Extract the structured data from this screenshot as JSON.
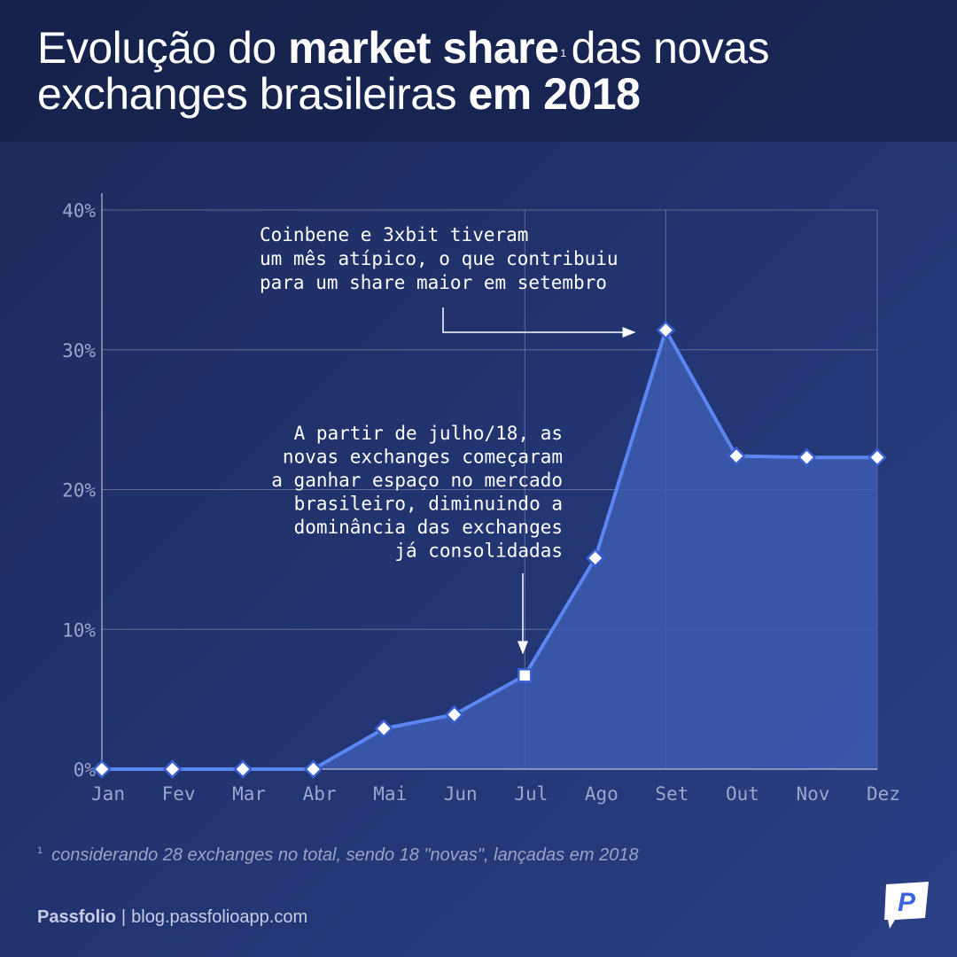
{
  "title": {
    "part1": "Evolução do ",
    "bold1": "market share",
    "footnote_mark": "1",
    "part2": "das novas exchanges brasileiras ",
    "bold2": "em 2018"
  },
  "chart_data": {
    "type": "area",
    "categories": [
      "Jan",
      "Fev",
      "Mar",
      "Abr",
      "Mai",
      "Jun",
      "Jul",
      "Ago",
      "Set",
      "Out",
      "Nov",
      "Dez"
    ],
    "series": [
      {
        "values": [
          0,
          0,
          0,
          0,
          2.9,
          3.9,
          6.7,
          15.1,
          31.4,
          22.4,
          22.3,
          22.3
        ]
      }
    ],
    "ylim": [
      0,
      40
    ],
    "yticks": [
      "0%",
      "10%",
      "20%",
      "30%",
      "40%"
    ],
    "grid": true,
    "line_color": "#5b85f0",
    "fill_color": "#3d5bb0",
    "annotations": [
      {
        "category": "Jul",
        "lines": [
          "A partir de julho/18, as",
          "novas exchanges começaram",
          "a ganhar espaço no mercado",
          "brasileiro, diminuindo a",
          "dominância das exchanges",
          "já consolidadas"
        ]
      },
      {
        "category": "Set",
        "lines": [
          "Coinbene e 3xbit tiveram",
          "um mês atípico, o que contribuiu",
          "para um share maior em setembro"
        ]
      }
    ]
  },
  "footnote": {
    "mark": "1",
    "text": "considerando 28 exchanges no total, sendo 18  \"novas\", lançadas em 2018"
  },
  "footer": {
    "brand": "Passfolio",
    "separator": "|",
    "url": "blog.passfolioapp.com"
  },
  "logo": {
    "letter": "P",
    "icon": "passfolio-logo-icon"
  }
}
